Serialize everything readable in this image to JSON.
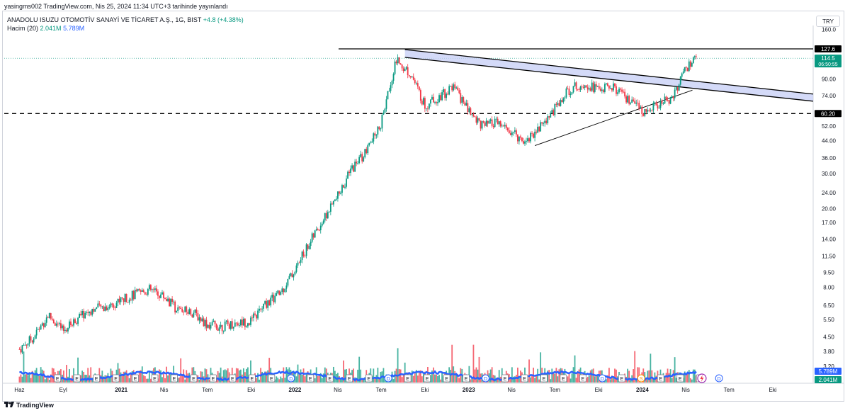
{
  "header": {
    "publish_line": "yasingms002 TradingView.com, Nis 25, 2024 11:34 UTC+3 tarihinde yayınlandı"
  },
  "legend": {
    "symbol": "ANADOLU ISUZU OTOMOTİV SANAYİ VE TİCARET A.Ş., 1G, BIST",
    "change": "+4.8 (+4.38%)",
    "volume_label": "Hacim (20)",
    "volume_value": "2.041M",
    "volume_ma": "5.789M"
  },
  "currency": "TRY",
  "footer": {
    "brand": "TradingView"
  },
  "colors": {
    "up": "#089981",
    "down": "#f23645",
    "volume_ma": "#2962ff",
    "channel_fill": "#c5cdf5"
  },
  "chart_data": {
    "type": "candlestick",
    "scale": "log",
    "y_ticks": [
      "160.0",
      "127.6",
      "114.5",
      "90.00",
      "74.00",
      "60.20",
      "52.00",
      "44.00",
      "36.00",
      "30.00",
      "24.00",
      "20.00",
      "17.00",
      "14.00",
      "11.50",
      "9.50",
      "8.00",
      "6.50",
      "5.50",
      "4.50",
      "3.80",
      "3.20"
    ],
    "x_ticks": [
      "Haz",
      "Eyl",
      "2021",
      "Nis",
      "Tem",
      "Eki",
      "2022",
      "Nis",
      "Tem",
      "Eki",
      "2023",
      "Nis",
      "Tem",
      "Eki",
      "2024",
      "Nis",
      "Tem",
      "Eki"
    ],
    "price_labels": [
      {
        "text": "127.6"
      },
      {
        "text": "114.5",
        "sub": "06:50:55"
      },
      {
        "text": "60.20"
      }
    ],
    "volume_labels": [
      {
        "text": "5.789M"
      },
      {
        "text": "2.041M"
      }
    ],
    "price_path": [
      [
        "2020-06-01",
        3.9
      ],
      [
        "2020-07-01",
        4.5
      ],
      [
        "2020-08-01",
        5.8
      ],
      [
        "2020-09-01",
        4.8
      ],
      [
        "2020-10-01",
        5.6
      ],
      [
        "2020-11-01",
        6.2
      ],
      [
        "2020-12-01",
        6.4
      ],
      [
        "2021-01-01",
        6.9
      ],
      [
        "2021-02-01",
        7.4
      ],
      [
        "2021-03-01",
        7.8
      ],
      [
        "2021-04-01",
        7.2
      ],
      [
        "2021-05-01",
        6.1
      ],
      [
        "2021-06-01",
        6.0
      ],
      [
        "2021-07-01",
        5.2
      ],
      [
        "2021-08-01",
        5.1
      ],
      [
        "2021-09-01",
        5.3
      ],
      [
        "2021-10-01",
        5.4
      ],
      [
        "2021-11-01",
        6.6
      ],
      [
        "2021-12-01",
        7.5
      ],
      [
        "2022-01-01",
        9.8
      ],
      [
        "2022-02-01",
        13.5
      ],
      [
        "2022-03-01",
        17.5
      ],
      [
        "2022-04-01",
        23.0
      ],
      [
        "2022-05-01",
        32.0
      ],
      [
        "2022-06-01",
        39.0
      ],
      [
        "2022-07-01",
        54.0
      ],
      [
        "2022-08-01",
        112.0
      ],
      [
        "2022-09-01",
        96.0
      ],
      [
        "2022-10-01",
        66.0
      ],
      [
        "2022-11-01",
        74.0
      ],
      [
        "2022-12-01",
        82.0
      ],
      [
        "2023-01-01",
        62.0
      ],
      [
        "2023-02-01",
        52.0
      ],
      [
        "2023-03-01",
        54.0
      ],
      [
        "2023-04-01",
        48.0
      ],
      [
        "2023-05-01",
        44.0
      ],
      [
        "2023-06-01",
        52.0
      ],
      [
        "2023-07-01",
        64.0
      ],
      [
        "2023-08-01",
        80.0
      ],
      [
        "2023-09-01",
        86.0
      ],
      [
        "2023-10-01",
        80.0
      ],
      [
        "2023-11-01",
        82.0
      ],
      [
        "2023-12-01",
        70.0
      ],
      [
        "2024-01-01",
        62.0
      ],
      [
        "2024-02-01",
        66.0
      ],
      [
        "2024-03-01",
        72.0
      ],
      [
        "2024-04-01",
        100.0
      ],
      [
        "2024-04-25",
        114.5
      ]
    ],
    "overlays": {
      "resistance_high": 127.6,
      "support_dashed": 60.2,
      "descending_channel": "upper and lower trendlines from the 2022 peak to the right edge",
      "ascending_trendline": "from the 2023 low toward the channel"
    },
    "event_markers": [
      "E",
      "E",
      "E",
      "E",
      "E",
      "E",
      "E",
      "E",
      "E",
      "E",
      "E",
      "E",
      "D",
      "E",
      "E",
      "E",
      "E",
      "D",
      "E",
      "E",
      "E",
      "E",
      "D",
      "E",
      "E",
      "E",
      "E",
      "E",
      "D",
      "E",
      "S",
      "E",
      "E",
      "E",
      "D"
    ]
  }
}
